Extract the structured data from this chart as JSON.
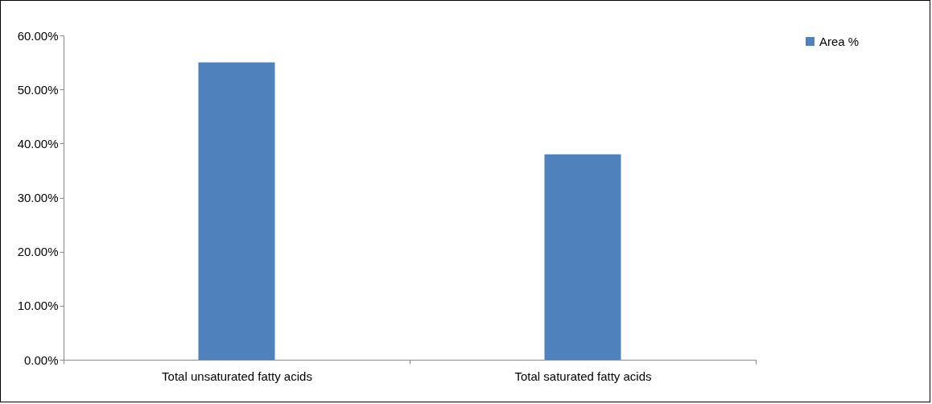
{
  "chart_data": {
    "type": "bar",
    "categories": [
      "Total unsaturated fatty acids",
      "Total  saturated fatty acids"
    ],
    "series": [
      {
        "name": "Area %",
        "color": "#4f81bd",
        "values": [
          55,
          38
        ]
      }
    ],
    "ylim": [
      0,
      60
    ],
    "yticks": [
      {
        "value": 0,
        "label": "0.00%"
      },
      {
        "value": 10,
        "label": "10.00%"
      },
      {
        "value": 20,
        "label": "20.00%"
      },
      {
        "value": 30,
        "label": "30.00%"
      },
      {
        "value": 40,
        "label": "40.00%"
      },
      {
        "value": 50,
        "label": "50.00%"
      },
      {
        "value": 60,
        "label": "60.00%"
      }
    ],
    "grid": false,
    "legend": "right"
  }
}
